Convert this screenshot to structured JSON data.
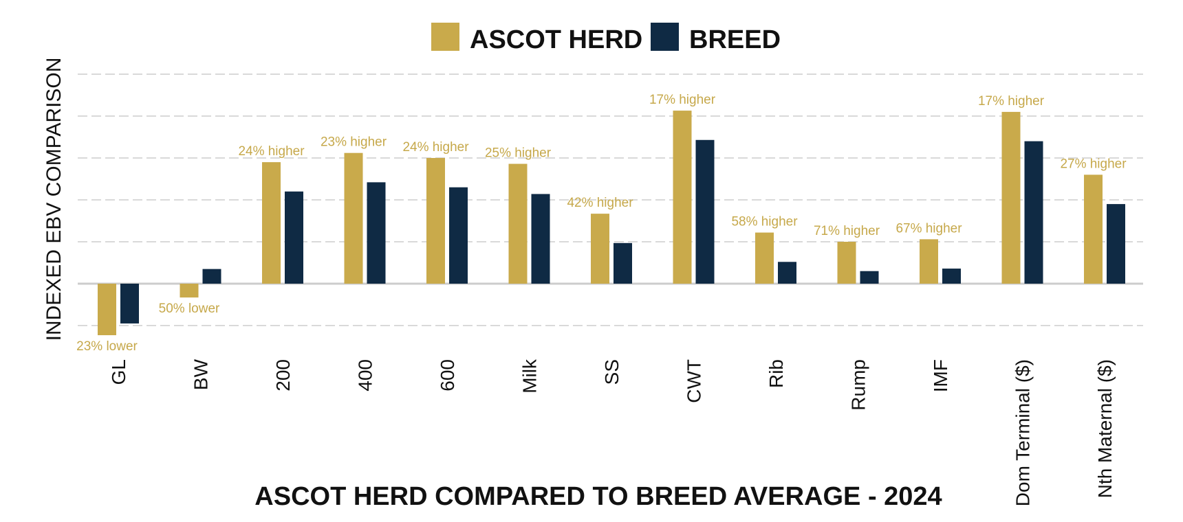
{
  "colors": {
    "ascot": "#c9aa4b",
    "breed": "#0f2a44",
    "grid": "#d9d9d9",
    "axis": "#cccccc",
    "data_label": "#c6a84a"
  },
  "chart_data": {
    "type": "bar",
    "title": "ASCOT HERD COMPARED TO BREED AVERAGE - 2024",
    "ylabel": "INDEXED EBV COMPARISON",
    "xlabel": "",
    "legend_position": "top-center",
    "grid": true,
    "ylim": [
      -1.2,
      5
    ],
    "categories": [
      "GL",
      "BW",
      "200",
      "400",
      "600",
      "Milk",
      "SS",
      "CWT",
      "Rib",
      "Rump",
      "IMF",
      "Dom Terminal ($)",
      "Nth Maternal ($)"
    ],
    "series": [
      {
        "name": "ASCOT HERD",
        "values": [
          -1.23,
          -0.33,
          2.9,
          3.12,
          3.0,
          2.86,
          1.67,
          4.13,
          1.22,
          1.0,
          1.06,
          4.1,
          2.6
        ],
        "labels": [
          "23% lower",
          "50% lower",
          "24% higher",
          "23% higher",
          "24% higher",
          "25% higher",
          "42% higher",
          "17% higher",
          "58% higher",
          "71% higher",
          "67% higher",
          "17% higher",
          "27% higher"
        ]
      },
      {
        "name": "BREED",
        "values": [
          -0.95,
          0.35,
          2.2,
          2.42,
          2.3,
          2.14,
          0.97,
          3.43,
          0.52,
          0.3,
          0.36,
          3.4,
          1.9
        ]
      }
    ]
  }
}
